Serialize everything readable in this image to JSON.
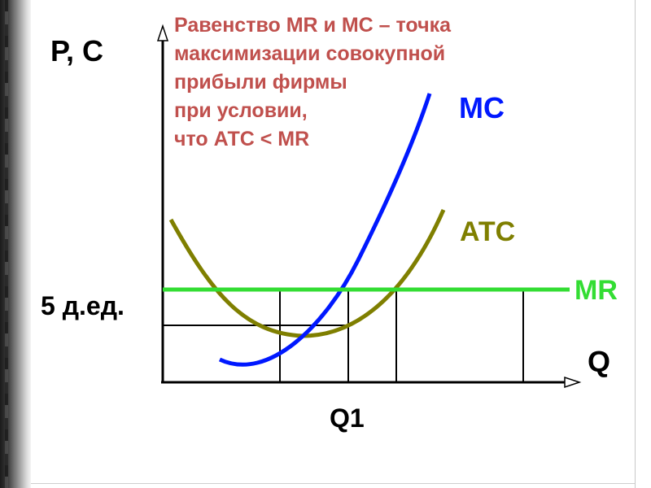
{
  "slide": {
    "title_text": "Равенство MR и МС – точка\nмаксимизации совокупной\nприбыли фирмы\nпри условии,\nчто АТС < MR"
  },
  "axes": {
    "y_label": "Р, С",
    "x_label": "Q",
    "price_label": "5 д.ед.",
    "q_label": "Q1"
  },
  "curves": {
    "mc_label": "МС",
    "atc_label": "АТС",
    "mr_label": "MR"
  },
  "colors": {
    "mc": "#0018ff",
    "atc": "#7f7f00",
    "mr": "#33dd33",
    "axis": "#000000",
    "title": "#c0504d",
    "label": "#000000"
  }
}
